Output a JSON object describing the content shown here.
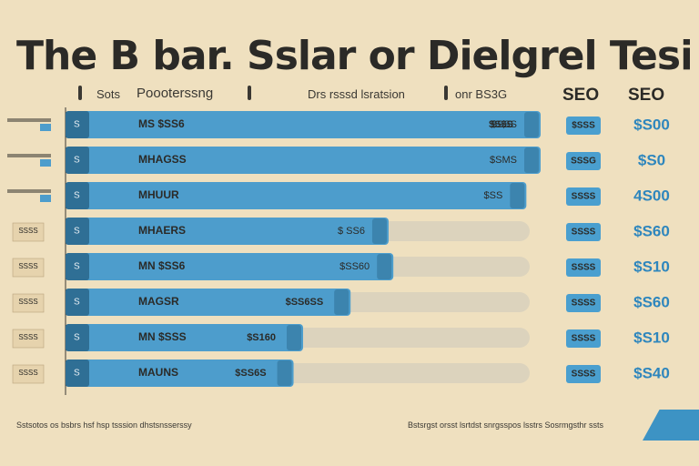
{
  "header": {
    "title": "The B bar. Sslar or Dielgrel Tesiioms",
    "sub_left_a": "Sots",
    "sub_left_b": "Poooterssng",
    "sub_mid": "Drs rsssd lsratsion",
    "sub_right": "onr BS3G",
    "col1": "SEO",
    "col2": "SEO"
  },
  "footer": {
    "left": "Sstsotos os bsbrs hsf hsp tsssion dhstsnsserssy",
    "right": "Bstsrgst orsst lsrtdst snrgsspos lsstrs Sosrmgsthr ssts"
  },
  "chart_data": {
    "type": "bar",
    "orientation": "horizontal",
    "title": "The B bar. Sslar or Dielgrel Tesiioms",
    "xlim": [
      0,
      100
    ],
    "categories": [
      "S",
      "S",
      "S",
      "S",
      "S",
      "S",
      "S",
      "S"
    ],
    "series": [
      {
        "values": [
          100,
          100,
          97,
          68,
          69,
          60,
          50,
          48
        ]
      }
    ],
    "track_values": [
      100,
      100,
      97,
      100,
      100,
      100,
      100,
      100
    ],
    "inner_labels": [
      "MS $SS6",
      "MHAGSS",
      "MHUUR",
      "MHAERS",
      "MN $SS6",
      "MAGSR",
      "MN $SSS",
      "MAUNS"
    ],
    "mid_labels": [
      "$S$S",
      "",
      "",
      "",
      "",
      "$SS6SS",
      "$S160",
      "$SS6S"
    ],
    "end_labels": [
      "$SSS",
      "$SMS",
      "$SS",
      "$ SS6",
      "$SS60",
      "",
      "",
      ""
    ],
    "left_labels": [
      "",
      "",
      "",
      "SSSS",
      "SSSS",
      "SSSS",
      "SSSS",
      "SSSS"
    ],
    "badges": [
      "$SSS",
      "SSSG",
      "SSSS",
      "SSSS",
      "SSSS",
      "SSSS",
      "SSSS",
      "SSSS"
    ],
    "right_values": [
      "$S00",
      "$S0",
      "4S00",
      "$S60",
      "$S10",
      "$S60",
      "$S10",
      "$S40"
    ],
    "colors": {
      "bar": "#4d9dcc",
      "bar_dark": "#2f6f95",
      "track": "#dcd3bd",
      "badge": "#4a9fcf",
      "right_text": "#2e86bd",
      "text": "#2b2a27"
    }
  }
}
